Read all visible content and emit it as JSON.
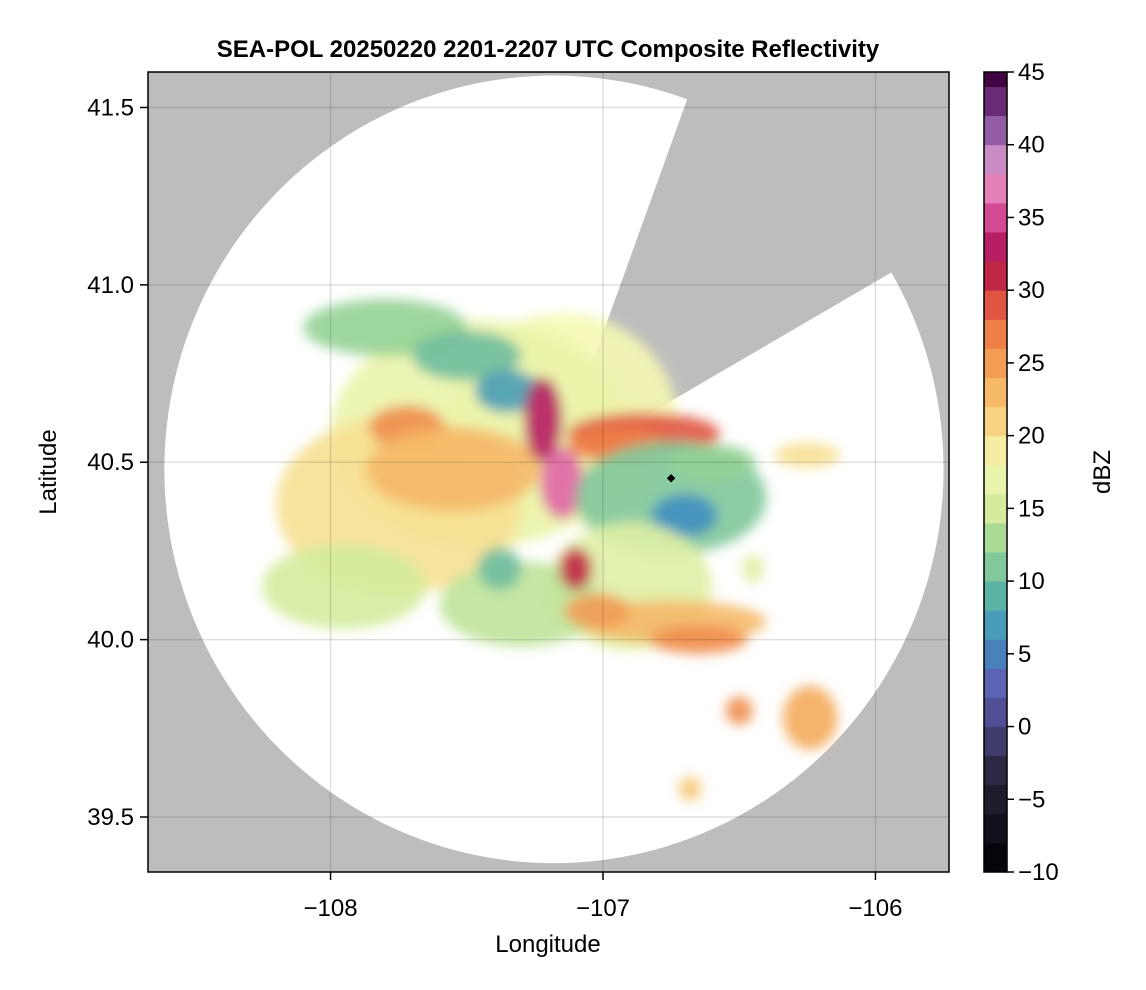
{
  "chart_data": {
    "type": "heatmap",
    "title": "SEA-POL 20250220 2201-2207 UTC Composite Reflectivity",
    "xlabel": "Longitude",
    "ylabel": "Latitude",
    "xlim": [
      -108.67,
      -105.73
    ],
    "ylim": [
      39.345,
      41.6
    ],
    "xticks": [
      -108,
      -107,
      -106
    ],
    "xtick_labels": [
      "−108",
      "−107",
      "−106"
    ],
    "yticks": [
      39.5,
      40.0,
      40.5,
      41.0,
      41.5
    ],
    "ytick_labels": [
      "39.5",
      "40.0",
      "40.5",
      "41.0",
      "41.5"
    ],
    "grid": true,
    "background_color": "#bdbdbd",
    "radar": {
      "center_lon": -107.18,
      "center_lat": 40.48,
      "range_lat_deg": 1.11,
      "range_lon_deg": 1.43,
      "blocked_sector_bearing_deg": [
        20,
        60
      ],
      "marker": {
        "lon": -106.75,
        "lat": 40.455
      }
    },
    "colorbar": {
      "label": "dBZ",
      "min": -10,
      "max": 45,
      "step": 2,
      "ticks": [
        -10,
        -5,
        0,
        5,
        10,
        15,
        20,
        25,
        30,
        35,
        40,
        45
      ],
      "tick_labels": [
        "−10",
        "−5",
        "0",
        "5",
        "10",
        "15",
        "20",
        "25",
        "30",
        "35",
        "40",
        "45"
      ],
      "colors": [
        {
          "v": -10,
          "c": "#000004"
        },
        {
          "v": -5,
          "c": "#1d1b2c"
        },
        {
          "v": -2,
          "c": "#34304f"
        },
        {
          "v": 0,
          "c": "#4a4586"
        },
        {
          "v": 3,
          "c": "#5b63b5"
        },
        {
          "v": 6,
          "c": "#4090c0"
        },
        {
          "v": 9,
          "c": "#5bb3a4"
        },
        {
          "v": 12,
          "c": "#94d295"
        },
        {
          "v": 15,
          "c": "#d4ec9c"
        },
        {
          "v": 18,
          "c": "#f6f8b3"
        },
        {
          "v": 21,
          "c": "#f7d482"
        },
        {
          "v": 24,
          "c": "#f4ab5b"
        },
        {
          "v": 27,
          "c": "#ee7f46"
        },
        {
          "v": 30,
          "c": "#d9403f"
        },
        {
          "v": 32,
          "c": "#a80c4a"
        },
        {
          "v": 34,
          "c": "#c52f7c"
        },
        {
          "v": 36,
          "c": "#e065a7"
        },
        {
          "v": 38,
          "c": "#e99acb"
        },
        {
          "v": 40,
          "c": "#a87bbb"
        },
        {
          "v": 42,
          "c": "#7e3e8f"
        },
        {
          "v": 45,
          "c": "#400442"
        }
      ]
    },
    "echo_cells": [
      {
        "lon": -107.15,
        "lat": 40.62,
        "rlon": 0.42,
        "rlat": 0.3,
        "dbz": 18
      },
      {
        "lon": -107.45,
        "lat": 40.58,
        "rlon": 0.55,
        "rlat": 0.32,
        "dbz": 17
      },
      {
        "lon": -107.75,
        "lat": 40.38,
        "rlon": 0.45,
        "rlat": 0.25,
        "dbz": 20
      },
      {
        "lon": -107.95,
        "lat": 40.15,
        "rlon": 0.3,
        "rlat": 0.12,
        "dbz": 15
      },
      {
        "lon": -107.72,
        "lat": 40.6,
        "rlon": 0.14,
        "rlat": 0.06,
        "dbz": 26
      },
      {
        "lon": -107.55,
        "lat": 40.48,
        "rlon": 0.32,
        "rlat": 0.12,
        "dbz": 23
      },
      {
        "lon": -107.8,
        "lat": 40.88,
        "rlon": 0.3,
        "rlat": 0.08,
        "dbz": 12
      },
      {
        "lon": -107.5,
        "lat": 40.8,
        "rlon": 0.2,
        "rlat": 0.07,
        "dbz": 10
      },
      {
        "lon": -107.35,
        "lat": 40.7,
        "rlon": 0.12,
        "rlat": 0.06,
        "dbz": 7
      },
      {
        "lon": -107.22,
        "lat": 40.62,
        "rlon": 0.07,
        "rlat": 0.12,
        "dbz": 33
      },
      {
        "lon": -107.15,
        "lat": 40.44,
        "rlon": 0.08,
        "rlat": 0.1,
        "dbz": 36
      },
      {
        "lon": -106.85,
        "lat": 40.58,
        "rlon": 0.28,
        "rlat": 0.06,
        "dbz": 29
      },
      {
        "lon": -106.95,
        "lat": 40.55,
        "rlon": 0.18,
        "rlat": 0.05,
        "dbz": 27
      },
      {
        "lon": -106.75,
        "lat": 40.4,
        "rlon": 0.35,
        "rlat": 0.16,
        "dbz": 11
      },
      {
        "lon": -106.7,
        "lat": 40.35,
        "rlon": 0.12,
        "rlat": 0.06,
        "dbz": 6
      },
      {
        "lon": -106.6,
        "lat": 40.5,
        "rlon": 0.16,
        "rlat": 0.05,
        "dbz": 12
      },
      {
        "lon": -106.9,
        "lat": 40.15,
        "rlon": 0.3,
        "rlat": 0.18,
        "dbz": 16
      },
      {
        "lon": -106.75,
        "lat": 40.05,
        "rlon": 0.35,
        "rlat": 0.06,
        "dbz": 23
      },
      {
        "lon": -106.65,
        "lat": 40.0,
        "rlon": 0.18,
        "rlat": 0.04,
        "dbz": 26
      },
      {
        "lon": -107.3,
        "lat": 40.1,
        "rlon": 0.3,
        "rlat": 0.12,
        "dbz": 14
      },
      {
        "lon": -107.1,
        "lat": 40.2,
        "rlon": 0.06,
        "rlat": 0.06,
        "dbz": 31
      },
      {
        "lon": -107.38,
        "lat": 40.2,
        "rlon": 0.08,
        "rlat": 0.06,
        "dbz": 10
      },
      {
        "lon": -107.02,
        "lat": 40.08,
        "rlon": 0.12,
        "rlat": 0.05,
        "dbz": 25
      },
      {
        "lon": -106.25,
        "lat": 40.52,
        "rlon": 0.12,
        "rlat": 0.035,
        "dbz": 20
      },
      {
        "lon": -106.5,
        "lat": 39.8,
        "rlon": 0.05,
        "rlat": 0.04,
        "dbz": 26
      },
      {
        "lon": -106.24,
        "lat": 39.78,
        "rlon": 0.1,
        "rlat": 0.09,
        "dbz": 24
      },
      {
        "lon": -106.68,
        "lat": 39.58,
        "rlon": 0.04,
        "rlat": 0.035,
        "dbz": 22
      },
      {
        "lon": -106.45,
        "lat": 40.2,
        "rlon": 0.04,
        "rlat": 0.04,
        "dbz": 16
      }
    ]
  }
}
